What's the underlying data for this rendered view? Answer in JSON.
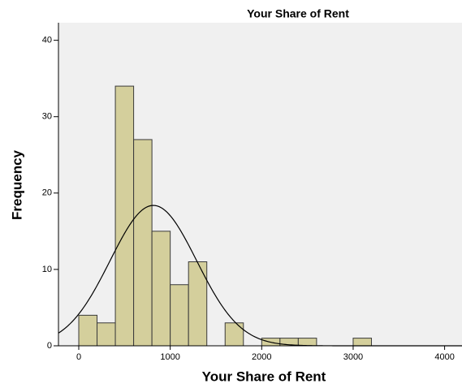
{
  "chart_data": {
    "type": "histogram",
    "title": "Your Share of Rent",
    "x_label": "Your Share of Rent",
    "y_label": "Frequency",
    "bins": [
      0,
      200,
      400,
      600,
      800,
      1000,
      1200,
      1400,
      1600,
      1800,
      2000,
      2200,
      2400,
      2600,
      2800,
      3000,
      3200
    ],
    "values": [
      4,
      3,
      34,
      27,
      15,
      8,
      11,
      0,
      3,
      0,
      1,
      1,
      1,
      0,
      0,
      1
    ],
    "color": "#d4cf9c",
    "xlim": [
      -222,
      4190
    ],
    "xticks": [
      0,
      1000,
      2000,
      3000,
      4000
    ],
    "ylim": [
      0,
      42.3
    ],
    "yticks": [
      0,
      10,
      20,
      30,
      40
    ],
    "normal_curve": true
  }
}
